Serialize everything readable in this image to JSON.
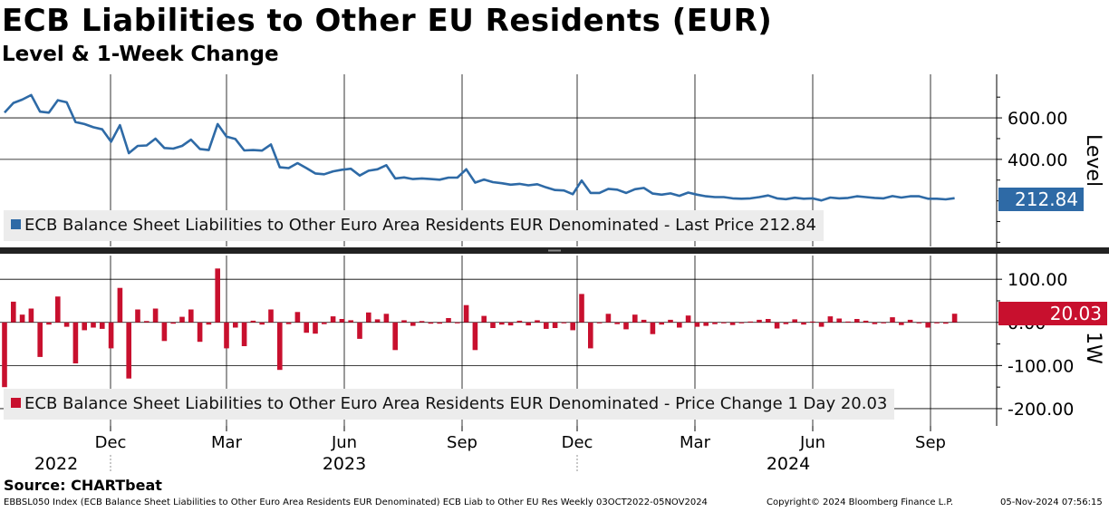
{
  "header": {
    "title": "ECB Liabilities to Other EU Residents (EUR)",
    "subtitle": "Level & 1-Week Change"
  },
  "colors": {
    "level_line": "#2e6aa6",
    "change_bar": "#c8102e",
    "legend_bg": "#ececec"
  },
  "source": "Source: CHARTbeat",
  "footer": {
    "ticker": "EBBSL050 Index (ECB Balance Sheet Liabilities to Other Euro Area Residents EUR Denominated) ECB Liab to Other EU Res  Weekly 03OCT2022-05NOV2024",
    "copyright": "Copyright© 2024 Bloomberg Finance L.P.",
    "timestamp": "05-Nov-2024 07:56:15"
  },
  "chart_data": [
    {
      "type": "line",
      "ylabel": "Level",
      "ylim": [
        -20,
        810
      ],
      "yticks": [
        "600.00",
        "400.00"
      ],
      "ytick_values": [
        600,
        400
      ],
      "last_value_label": "212.84",
      "legend": "ECB Balance Sheet Liabilities to Other Euro Area Residents EUR Denominated - Last Price 212.84",
      "grid": true,
      "series": [
        {
          "name": "ECB Balance Sheet Liabilities to Other Euro Area Residents EUR Denominated - Last Price",
          "x_start": "2022-10-03",
          "x_step_days": 7,
          "values": [
            625,
            672,
            688,
            710,
            630,
            625,
            685,
            675,
            580,
            570,
            555,
            545,
            485,
            565,
            430,
            465,
            467,
            500,
            455,
            452,
            465,
            495,
            450,
            445,
            570,
            510,
            498,
            443,
            445,
            442,
            472,
            362,
            358,
            382,
            358,
            332,
            328,
            342,
            350,
            355,
            322,
            345,
            352,
            372,
            308,
            313,
            305,
            308,
            305,
            302,
            312,
            312,
            352,
            288,
            303,
            290,
            285,
            278,
            282,
            275,
            280,
            265,
            252,
            250,
            232,
            298,
            238,
            238,
            258,
            254,
            238,
            256,
            262,
            235,
            230,
            236,
            224,
            240,
            230,
            222,
            218,
            218,
            212,
            210,
            212,
            218,
            226,
            212,
            208,
            215,
            210,
            212,
            202,
            216,
            212,
            214,
            222,
            218,
            214,
            212,
            223,
            216,
            222,
            222,
            210,
            210,
            207,
            213
          ]
        }
      ]
    },
    {
      "type": "bar",
      "ylabel": "1W",
      "ylim": [
        -240,
        155
      ],
      "yticks": [
        "100.00",
        "0.00",
        "-100.00",
        "-200.00"
      ],
      "ytick_values": [
        100,
        0,
        -100,
        -200
      ],
      "last_value_label": "20.03",
      "legend": "ECB Balance Sheet Liabilities to Other Euro Area Residents EUR Denominated - Price Change 1 Day 20.03",
      "grid": true,
      "series": [
        {
          "name": "ECB Balance Sheet Liabilities to Other Euro Area Residents EUR Denominated - Price Change 1 Day",
          "values": [
            -150,
            48,
            18,
            32,
            -80,
            -5,
            60,
            -10,
            -95,
            -18,
            -12,
            -15,
            -60,
            80,
            -130,
            30,
            3,
            32,
            -43,
            -3,
            13,
            30,
            -45,
            -5,
            125,
            -60,
            -12,
            -55,
            4,
            -5,
            30,
            -110,
            -4,
            24,
            -24,
            -26,
            -4,
            14,
            8,
            5,
            -38,
            23,
            7,
            20,
            -64,
            5,
            -8,
            3,
            -3,
            -3,
            10,
            0,
            40,
            -64,
            15,
            -13,
            -5,
            -7,
            4,
            -7,
            5,
            -15,
            -13,
            -2,
            -18,
            66,
            -60,
            0,
            20,
            -4,
            -16,
            18,
            6,
            -27,
            -5,
            6,
            -12,
            16,
            -10,
            -8,
            -4,
            0,
            -6,
            -2,
            2,
            6,
            8,
            -14,
            -4,
            7,
            -5,
            2,
            -10,
            14,
            9,
            2,
            8,
            4,
            -4,
            -2,
            12,
            -6,
            6,
            0,
            -12,
            0,
            -3,
            20.03
          ]
        }
      ]
    }
  ],
  "x_axis": {
    "month_ticks": [
      "Dec",
      "Mar",
      "Jun",
      "Sep",
      "Dec",
      "Mar",
      "Jun",
      "Sep"
    ],
    "year_labels": [
      "2022",
      "2023",
      "2024"
    ]
  }
}
